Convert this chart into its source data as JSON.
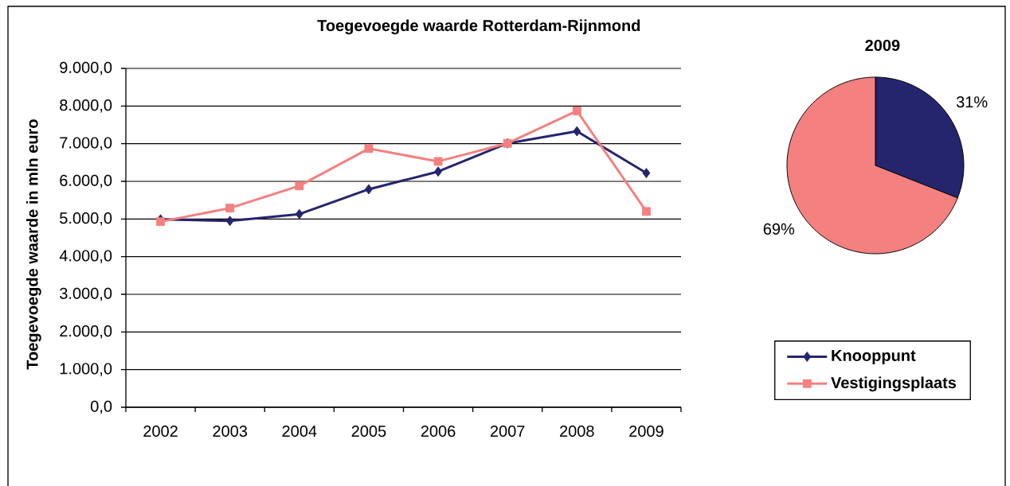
{
  "chart_data": [
    {
      "type": "line",
      "title": "Toegevoegde waarde  Rotterdam-Rijnmond",
      "ylabel": "Toegevoegde waarde in mln euro",
      "categories": [
        "2002",
        "2003",
        "2004",
        "2005",
        "2006",
        "2007",
        "2008",
        "2009"
      ],
      "series": [
        {
          "name": "Knooppunt",
          "color": "#25256e",
          "marker": "diamond",
          "values": [
            4990,
            4950,
            5130,
            5790,
            6260,
            7010,
            7330,
            6220
          ]
        },
        {
          "name": "Vestigingsplaats",
          "color": "#f48080",
          "marker": "square",
          "values": [
            4930,
            5290,
            5880,
            6870,
            6530,
            7010,
            7870,
            5200
          ]
        }
      ],
      "ylim": [
        0,
        9000
      ],
      "yticks": [
        {
          "value": 0,
          "label": "0,0"
        },
        {
          "value": 1000,
          "label": "1.000,0"
        },
        {
          "value": 2000,
          "label": "2.000,0"
        },
        {
          "value": 3000,
          "label": "3.000,0"
        },
        {
          "value": 4000,
          "label": "4.000,0"
        },
        {
          "value": 5000,
          "label": "5.000,0"
        },
        {
          "value": 6000,
          "label": "6.000,0"
        },
        {
          "value": 7000,
          "label": "7.000,0"
        },
        {
          "value": 8000,
          "label": "8.000,0"
        },
        {
          "value": 9000,
          "label": "9.000,0"
        }
      ],
      "grid": "y",
      "legend": "right",
      "line_style": "solid"
    },
    {
      "type": "pie",
      "title": "2009",
      "categories": [
        null,
        null
      ],
      "values": [
        31,
        69
      ],
      "colors": [
        "#25256e",
        "#f48080"
      ],
      "value_labels": [
        "31%",
        "69%"
      ]
    }
  ]
}
